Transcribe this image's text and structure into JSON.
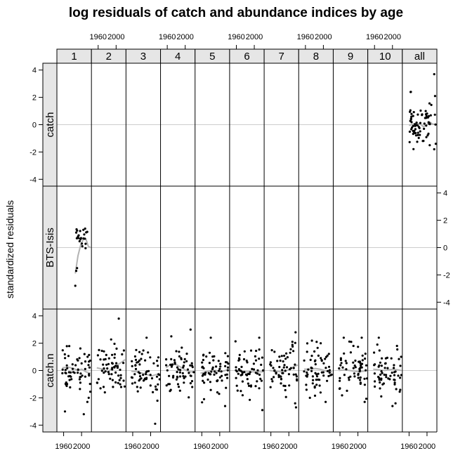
{
  "chart_data": {
    "type": "scatter",
    "title": "log residuals of catch and abundance indices by age",
    "ylabel": "standardized residuals",
    "xlabel": "",
    "columns": [
      "1",
      "2",
      "3",
      "4",
      "5",
      "6",
      "7",
      "8",
      "9",
      "10",
      "all"
    ],
    "rows": [
      "catch",
      "BTS-Isis",
      "catch.n"
    ],
    "x_ticks": [
      1960,
      2000
    ],
    "x_tick_labels": [
      "1960",
      "2000"
    ],
    "xlim": [
      1945,
      2022
    ],
    "y_ticks": [
      -4,
      -2,
      0,
      2,
      4
    ],
    "y_tick_labels": [
      "-4",
      "-2",
      "0",
      "2",
      "4"
    ],
    "ylim": [
      -4.5,
      4.5
    ],
    "reference_line": 0,
    "smoother": true,
    "grid": false,
    "colors": {
      "points": "#000000",
      "smoother": "#b3b3b3",
      "reference": "#cccccc",
      "strip_bg": "#e6e6e6",
      "frame": "#000000"
    },
    "panels": [
      {
        "row": "catch",
        "col": "all",
        "x_range": [
          1960,
          2020
        ],
        "n": 70,
        "mean": 0.1,
        "sd": 0.75,
        "seed": 11,
        "extra": [
          [
            2016,
            3.7
          ],
          [
            2018,
            2.1
          ],
          [
            2006,
            -1.5
          ],
          [
            2016,
            -1.8
          ]
        ],
        "smooth": [
          [
            1960,
            -0.05
          ],
          [
            1975,
            0.1
          ],
          [
            1985,
            0.05
          ],
          [
            1992,
            -0.15
          ],
          [
            2000,
            0.0
          ],
          [
            2006,
            0.2
          ],
          [
            2012,
            0.05
          ],
          [
            2020,
            0.0
          ]
        ]
      },
      {
        "row": "BTS-Isis",
        "col": "1",
        "x_range": [
          1985,
          2020
        ],
        "n": 20,
        "mean": 0.6,
        "sd": 0.5,
        "seed": 21,
        "extra": [
          [
            1986,
            -2.8
          ],
          [
            1988,
            -1.7
          ],
          [
            1990,
            -1.5
          ],
          [
            1988,
            1.1
          ],
          [
            1992,
            0.8
          ],
          [
            2004,
            1.3
          ]
        ],
        "smooth": [
          [
            1986,
            -1.9
          ],
          [
            1992,
            -0.6
          ],
          [
            1998,
            0.2
          ],
          [
            2004,
            0.6
          ],
          [
            2010,
            0.6
          ],
          [
            2015,
            0.1
          ],
          [
            2020,
            0.0
          ]
        ]
      },
      {
        "row": "catch.n",
        "col": "1",
        "x_range": [
          1957,
          2020
        ],
        "n": 60,
        "mean": 0.0,
        "sd": 0.85,
        "seed": 31,
        "extra": [
          [
            1963,
            -3.0
          ],
          [
            2005,
            -3.2
          ],
          [
            2013,
            -2.3
          ],
          [
            2016,
            -2.0
          ]
        ],
        "smooth": [
          [
            1957,
            0.2
          ],
          [
            1970,
            0.25
          ],
          [
            1982,
            0.15
          ],
          [
            1992,
            0.0
          ],
          [
            2000,
            0.1
          ],
          [
            2010,
            -0.1
          ],
          [
            2020,
            -0.2
          ]
        ]
      },
      {
        "row": "catch.n",
        "col": "2",
        "x_range": [
          1957,
          2020
        ],
        "n": 60,
        "mean": 0.1,
        "sd": 0.85,
        "seed": 41,
        "extra": [
          [
            2006,
            3.8
          ],
          [
            1975,
            -1.6
          ]
        ],
        "smooth": [
          [
            1957,
            0.2
          ],
          [
            1970,
            0.1
          ],
          [
            1982,
            -0.1
          ],
          [
            1992,
            0.2
          ],
          [
            2002,
            0.4
          ],
          [
            2012,
            0.6
          ],
          [
            2020,
            0.8
          ]
        ]
      },
      {
        "row": "catch.n",
        "col": "3",
        "x_range": [
          1957,
          2020
        ],
        "n": 60,
        "mean": -0.1,
        "sd": 0.85,
        "seed": 51,
        "extra": [
          [
            2010,
            -3.9
          ],
          [
            2014,
            -1.4
          ]
        ],
        "smooth": [
          [
            1957,
            -0.05
          ],
          [
            1970,
            -0.1
          ],
          [
            1982,
            -0.2
          ],
          [
            1992,
            -0.3
          ],
          [
            2002,
            -0.4
          ],
          [
            2012,
            -0.3
          ],
          [
            2020,
            -0.2
          ]
        ]
      },
      {
        "row": "catch.n",
        "col": "4",
        "x_range": [
          1957,
          2020
        ],
        "n": 60,
        "mean": 0.1,
        "sd": 0.9,
        "seed": 61,
        "extra": [
          [
            1969,
            2.5
          ],
          [
            2012,
            3.0
          ],
          [
            1966,
            -1.5
          ]
        ],
        "smooth": [
          [
            1957,
            0.2
          ],
          [
            1970,
            0.5
          ],
          [
            1982,
            0.4
          ],
          [
            1992,
            0.2
          ],
          [
            2002,
            0.0
          ],
          [
            2012,
            -0.1
          ],
          [
            2020,
            -0.1
          ]
        ]
      },
      {
        "row": "catch.n",
        "col": "5",
        "x_range": [
          1957,
          2020
        ],
        "n": 60,
        "mean": 0.0,
        "sd": 0.9,
        "seed": 71,
        "extra": [
          [
            1980,
            2.4
          ],
          [
            2012,
            -2.6
          ],
          [
            1965,
            -2.1
          ]
        ],
        "smooth": [
          [
            1957,
            -0.2
          ],
          [
            1970,
            -0.1
          ],
          [
            1982,
            0.0
          ],
          [
            1992,
            0.0
          ],
          [
            2002,
            -0.1
          ],
          [
            2012,
            0.0
          ],
          [
            2020,
            0.1
          ]
        ]
      },
      {
        "row": "catch.n",
        "col": "6",
        "x_range": [
          1957,
          2020
        ],
        "n": 60,
        "mean": 0.0,
        "sd": 0.9,
        "seed": 81,
        "extra": [
          [
            2018,
            -2.9
          ],
          [
            1970,
            -1.5
          ]
        ],
        "smooth": [
          [
            1957,
            0.0
          ],
          [
            1970,
            -0.05
          ],
          [
            1982,
            -0.1
          ],
          [
            1992,
            -0.1
          ],
          [
            2002,
            -0.1
          ],
          [
            2012,
            -0.1
          ],
          [
            2020,
            -0.1
          ]
        ]
      },
      {
        "row": "catch.n",
        "col": "7",
        "x_range": [
          1957,
          2020
        ],
        "n": 60,
        "mean": 0.0,
        "sd": 0.9,
        "seed": 91,
        "extra": [
          [
            2015,
            2.8
          ],
          [
            2016,
            -2.7
          ],
          [
            2014,
            -2.4
          ]
        ],
        "smooth": [
          [
            1957,
            0.0
          ],
          [
            1970,
            -0.05
          ],
          [
            1982,
            -0.1
          ],
          [
            1992,
            -0.05
          ],
          [
            2002,
            0.1
          ],
          [
            2012,
            0.3
          ],
          [
            2020,
            0.4
          ]
        ]
      },
      {
        "row": "catch.n",
        "col": "8",
        "x_range": [
          1957,
          2020
        ],
        "n": 60,
        "mean": 0.0,
        "sd": 0.85,
        "seed": 101,
        "extra": [
          [
            1985,
            2.1
          ],
          [
            2005,
            -2.3
          ],
          [
            1970,
            -2.0
          ]
        ],
        "smooth": [
          [
            1957,
            0.1
          ],
          [
            1970,
            0.1
          ],
          [
            1982,
            0.15
          ],
          [
            1992,
            0.1
          ],
          [
            2002,
            0.0
          ],
          [
            2012,
            -0.1
          ],
          [
            2020,
            -0.1
          ]
        ]
      },
      {
        "row": "catch.n",
        "col": "9",
        "x_range": [
          1957,
          2020
        ],
        "n": 60,
        "mean": 0.0,
        "sd": 0.85,
        "seed": 111,
        "extra": [
          [
            1985,
            2.1
          ],
          [
            2015,
            -2.3
          ],
          [
            1990,
            1.8
          ]
        ],
        "smooth": [
          [
            1957,
            0.0
          ],
          [
            1970,
            0.05
          ],
          [
            1982,
            0.0
          ],
          [
            1992,
            -0.05
          ],
          [
            2002,
            -0.1
          ],
          [
            2012,
            -0.05
          ],
          [
            2020,
            0.0
          ]
        ]
      },
      {
        "row": "catch.n",
        "col": "10",
        "x_range": [
          1957,
          2020
        ],
        "n": 60,
        "mean": 0.0,
        "sd": 0.85,
        "seed": 121,
        "extra": [
          [
            2000,
            -2.6
          ],
          [
            1975,
            -1.9
          ],
          [
            2010,
            1.8
          ]
        ],
        "smooth": [
          [
            1957,
            0.1
          ],
          [
            1970,
            0.05
          ],
          [
            1982,
            0.0
          ],
          [
            1992,
            0.05
          ],
          [
            2002,
            0.1
          ],
          [
            2012,
            0.05
          ],
          [
            2020,
            0.0
          ]
        ]
      }
    ]
  }
}
